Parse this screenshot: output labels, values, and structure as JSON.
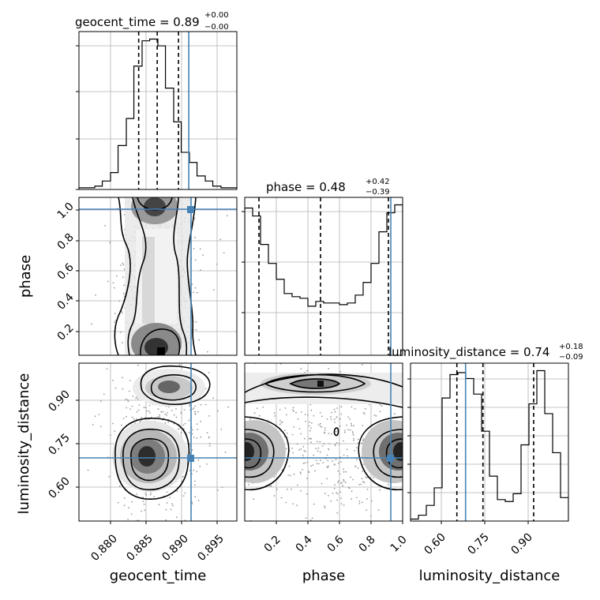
{
  "chart_data": {
    "type": "corner",
    "parameters": [
      "geocent_time",
      "phase",
      "luminosity_distance"
    ],
    "injection": {
      "geocent_time": 0.8915,
      "phase": 0.925,
      "luminosity_distance": 0.685
    },
    "accent_color": "#4682b4",
    "titles": {
      "geocent_time": {
        "prefix": "geocent_time = 0.89",
        "sup": "+0.00",
        "sub": "−0.00"
      },
      "phase": {
        "prefix": "phase = 0.48",
        "sup": "+0.42",
        "sub": "−0.39"
      },
      "luminosity_distance": {
        "prefix": "luminosity_distance = 0.74",
        "sup": "+0.18",
        "sub": "−0.09"
      }
    },
    "axes": {
      "geocent_time": {
        "range": [
          0.8755,
          0.8985
        ],
        "ticks": [
          "0.880",
          "0.885",
          "0.890",
          "0.895"
        ]
      },
      "phase": {
        "range": [
          0.0,
          1.0
        ],
        "ticks": [
          "0.2",
          "0.4",
          "0.6",
          "0.8",
          "1.0"
        ]
      },
      "luminosity_distance": {
        "range": [
          0.495,
          1.04
        ],
        "ticks": [
          "0.60",
          "0.75",
          "0.90"
        ]
      }
    },
    "quantiles": {
      "geocent_time": [
        0.8842,
        0.8869,
        0.89
      ],
      "phase": [
        0.09,
        0.48,
        0.91
      ],
      "luminosity_distance": [
        0.655,
        0.745,
        0.92
      ]
    },
    "histograms": {
      "geocent_time": {
        "edges": [
          0.8755,
          0.8766,
          0.8778,
          0.8789,
          0.8801,
          0.8812,
          0.8824,
          0.8835,
          0.8847,
          0.8858,
          0.887,
          0.8881,
          0.8893,
          0.8904,
          0.8916,
          0.8927,
          0.8939,
          0.895,
          0.8962,
          0.8973,
          0.8985
        ],
        "counts": [
          1,
          1,
          2,
          5,
          10,
          26,
          42,
          73,
          88,
          89,
          85,
          60,
          40,
          22,
          16,
          8,
          5,
          2,
          1,
          1
        ]
      },
      "phase": {
        "edges": [
          0.0,
          0.05,
          0.1,
          0.15,
          0.2,
          0.25,
          0.3,
          0.35,
          0.4,
          0.45,
          0.5,
          0.55,
          0.6,
          0.65,
          0.7,
          0.75,
          0.8,
          0.85,
          0.9,
          0.95,
          1.0
        ],
        "counts": [
          93,
          88,
          70,
          58,
          48,
          39,
          37,
          36,
          31,
          34,
          33,
          33,
          32,
          33,
          38,
          46,
          58,
          78,
          90,
          95
        ]
      },
      "luminosity_distance": {
        "edges": [
          0.495,
          0.5223,
          0.5495,
          0.5768,
          0.604,
          0.6313,
          0.6585,
          0.6858,
          0.713,
          0.7403,
          0.7675,
          0.7948,
          0.822,
          0.8493,
          0.8765,
          0.9038,
          0.931,
          0.9583,
          0.9855,
          1.0128,
          1.04
        ],
        "counts": [
          1,
          3,
          8,
          17,
          63,
          75,
          76,
          73,
          65,
          46,
          23,
          11,
          10,
          14,
          39,
          60,
          77,
          55,
          35,
          12
        ]
      }
    }
  }
}
